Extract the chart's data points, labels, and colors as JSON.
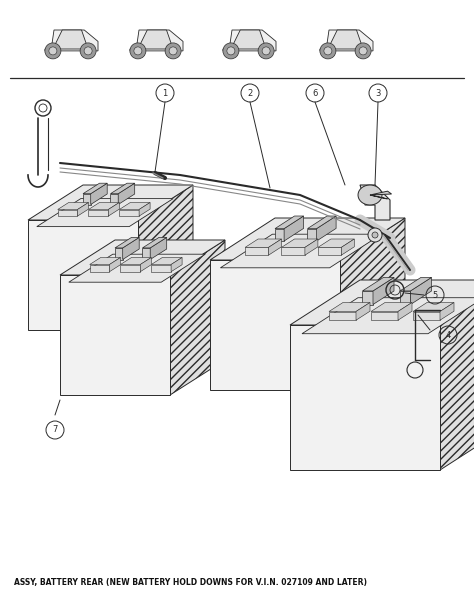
{
  "bg_color": "#ffffff",
  "line_color": "#2a2a2a",
  "fig_width": 4.74,
  "fig_height": 6.14,
  "note_text": "ASSY, BATTERY REAR (NEW BATTERY HOLD DOWNS FOR V.I.N. 027109 AND LATER)"
}
